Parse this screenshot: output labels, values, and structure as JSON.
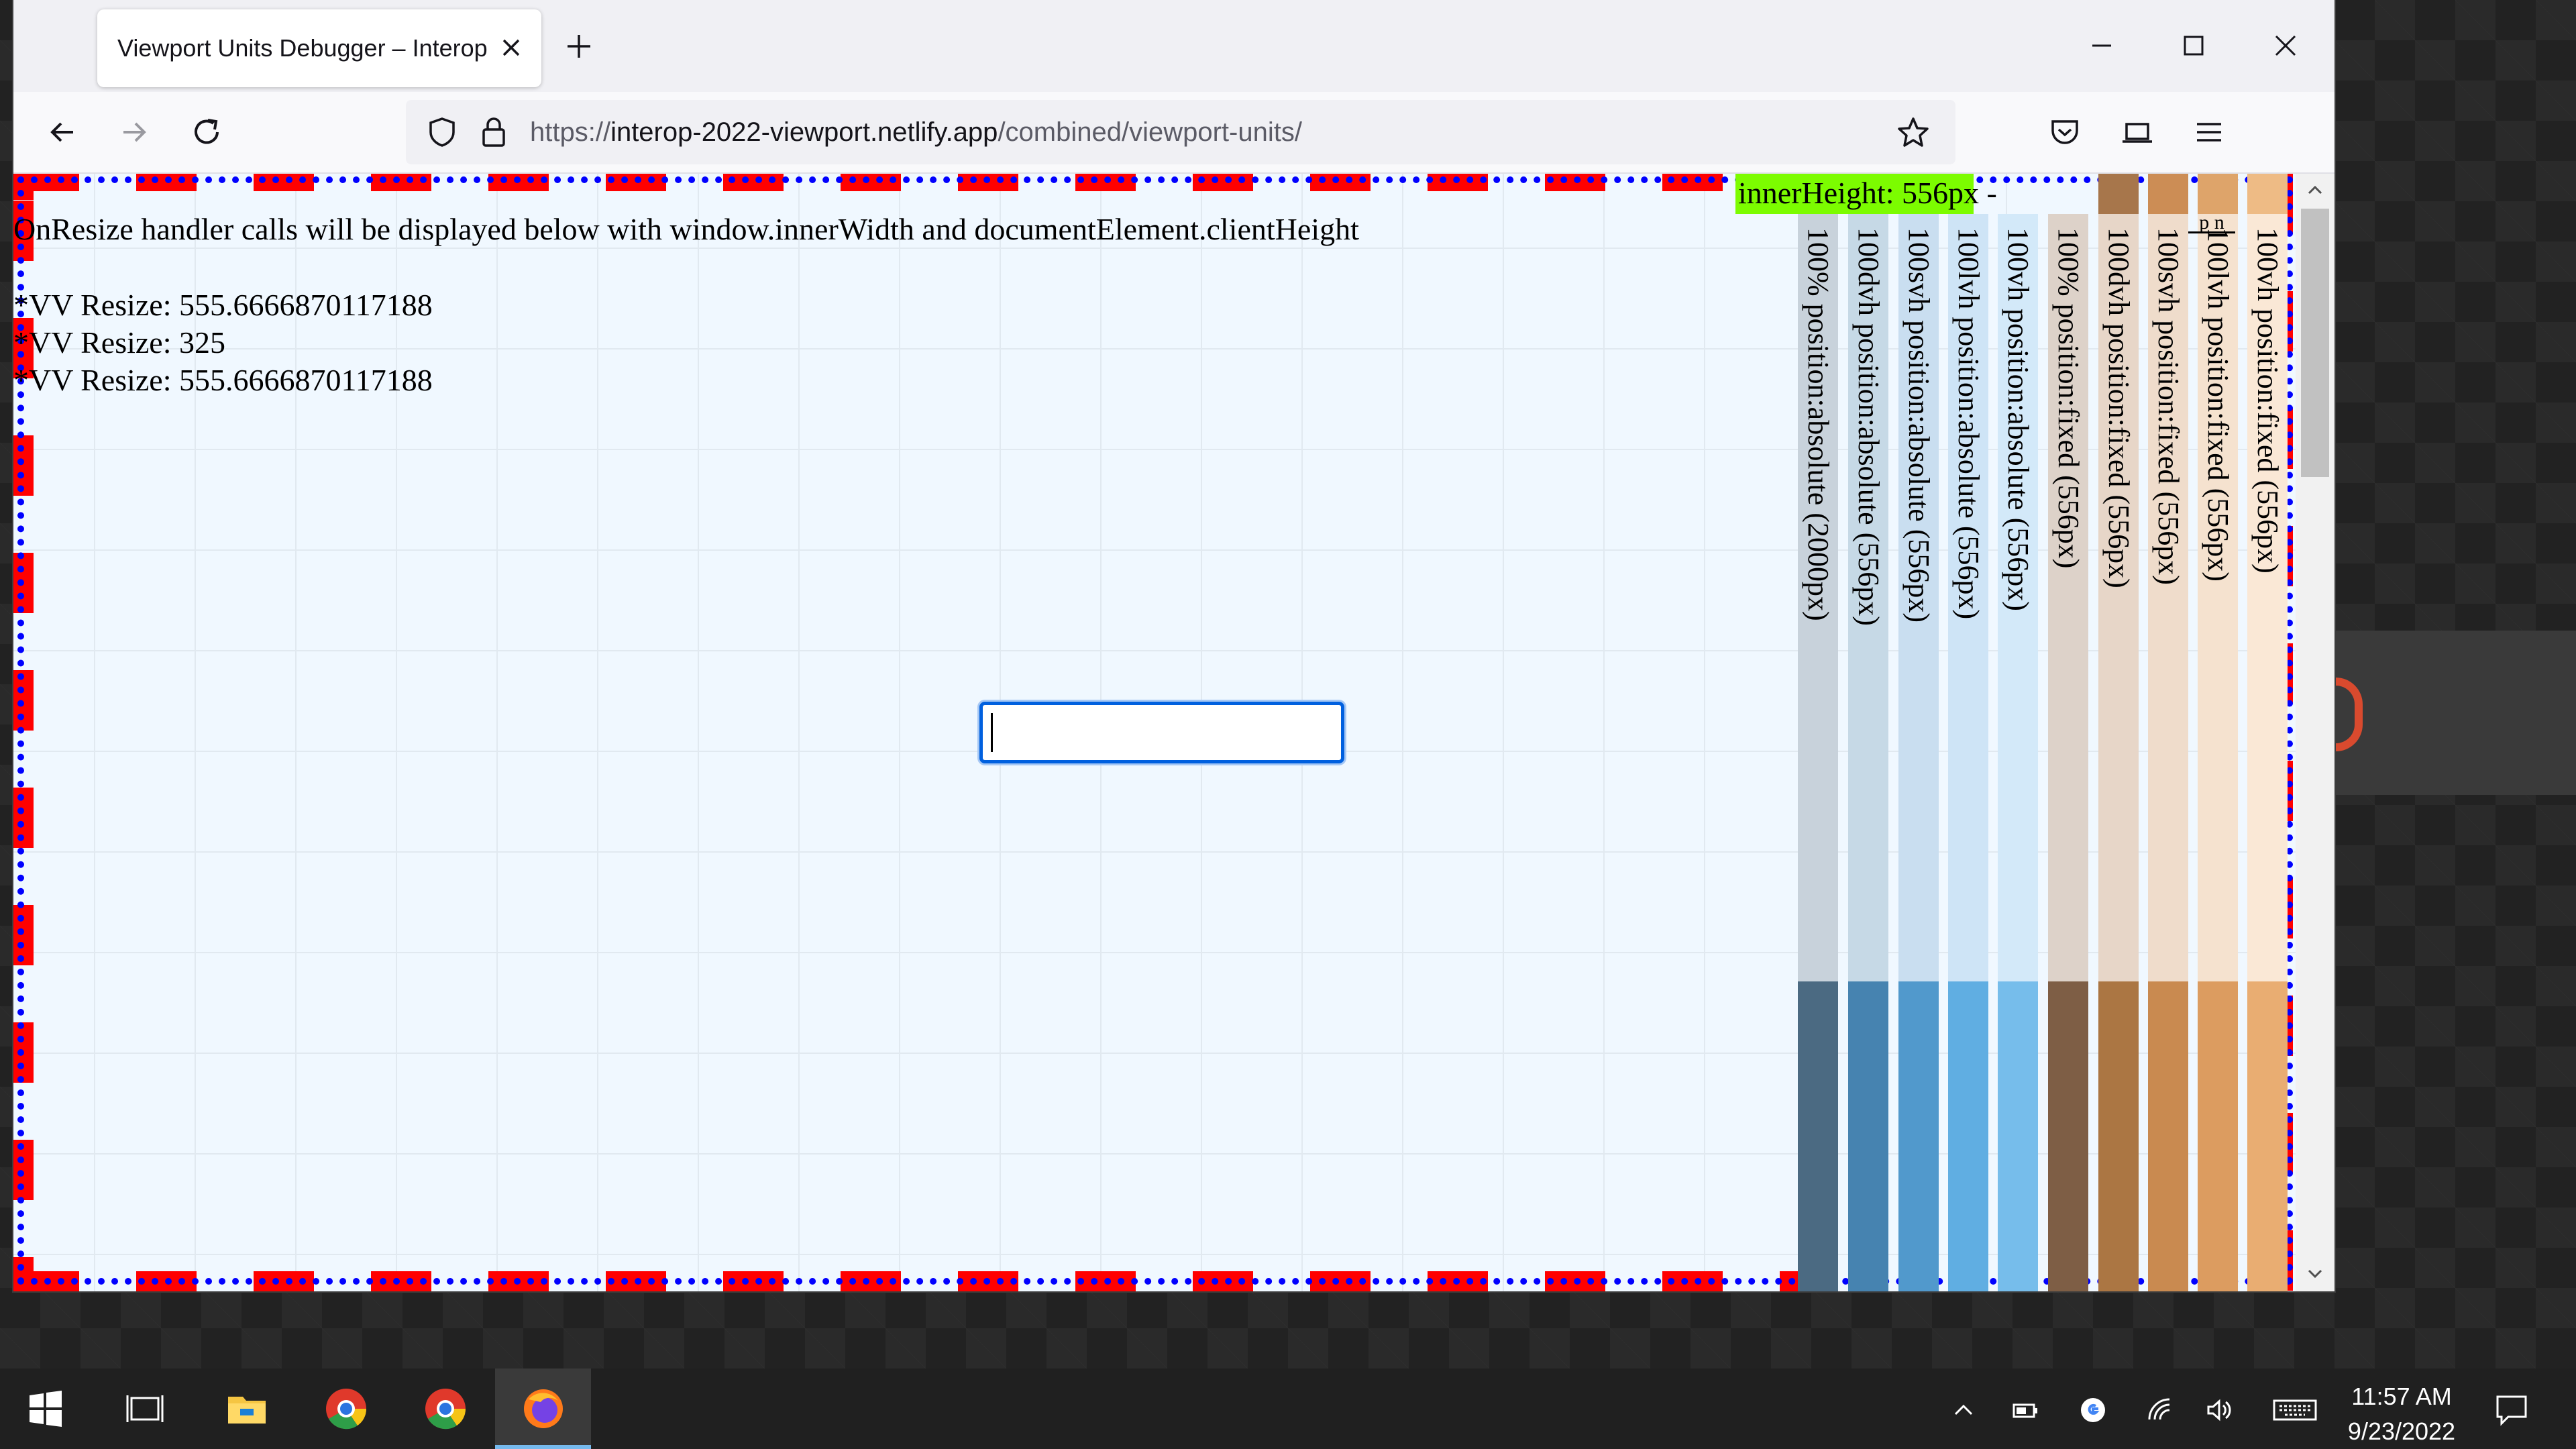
{
  "browser": {
    "tab_title": "Viewport Units Debugger – Interop",
    "url_prefix": "https://",
    "url_host": "interop-2022-viewport.netlify.app",
    "url_path": "/combined/viewport-units/"
  },
  "page": {
    "intro": "OnResize handler calls will be displayed below with window.innerWidth and documentElement.clientHeight",
    "log": [
      "*VV Resize: 555.6666870117188",
      "*VV Resize: 325",
      "*VV Resize: 555.6666870117188"
    ],
    "inner_height": "innerHeight: 556px -",
    "mini_label": "p   n",
    "input_value": "",
    "columns": [
      {
        "label": "100% position:absolute (2000px)",
        "top": "#c8d2db",
        "bottom": "#4b6a82"
      },
      {
        "label": "100dvh position:absolute (556px)",
        "top": "#c6d9e6",
        "bottom": "#4683b0"
      },
      {
        "label": "100svh position:absolute (556px)",
        "top": "#c9def0",
        "bottom": "#5199cc"
      },
      {
        "label": "100lvh position:absolute (556px)",
        "top": "#cee4f6",
        "bottom": "#60aee2"
      },
      {
        "label": "100vh position:absolute (556px)",
        "top": "#d3e9f9",
        "bottom": "#76bdeb"
      },
      {
        "label": "100% position:fixed (556px)",
        "top": "#ddd2c9",
        "bottom": "#7e5e45"
      },
      {
        "label": "100dvh position:fixed (556px)",
        "top": "#e7d6c8",
        "bottom": "#ab7643"
      },
      {
        "label": "100svh position:fixed (556px)",
        "top": "#efdccb",
        "bottom": "#c98a50"
      },
      {
        "label": "100lvh position:fixed (556px)",
        "top": "#f5e2cf",
        "bottom": "#dc9c60"
      },
      {
        "label": "100vh position:fixed (556px)",
        "top": "#fae8d6",
        "bottom": "#e9ad72"
      }
    ],
    "stubs": [
      "#a7764b",
      "#cc8d55",
      "#dea46a",
      "#eebb85"
    ]
  },
  "taskbar": {
    "time": "11:57 AM",
    "date": "9/23/2022"
  }
}
